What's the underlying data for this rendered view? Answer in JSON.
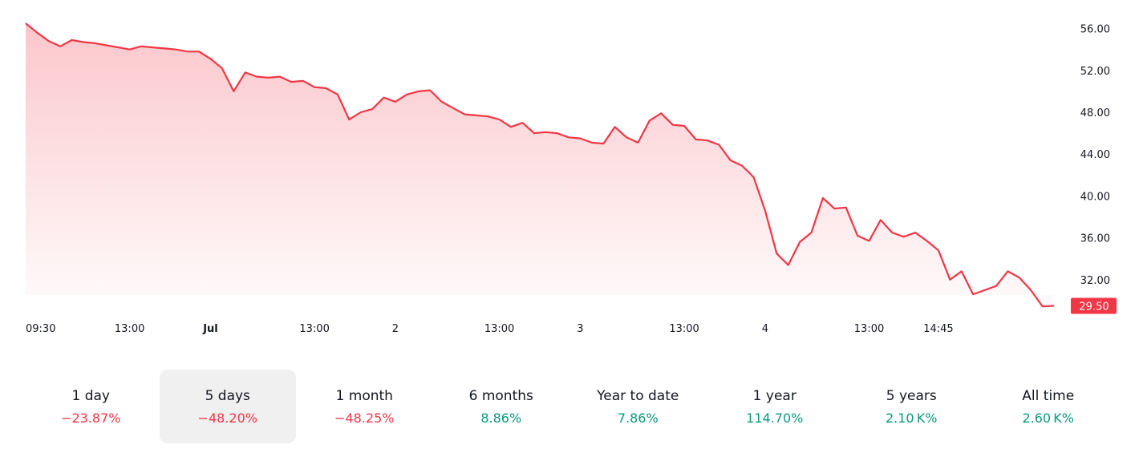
{
  "chart_data": {
    "type": "area",
    "y_ticks": [
      "56.00",
      "52.00",
      "48.00",
      "44.00",
      "40.00",
      "36.00",
      "32.00"
    ],
    "y_tick_values": [
      56,
      52,
      48,
      44,
      40,
      36,
      32
    ],
    "ylim": [
      29.0,
      57.5
    ],
    "x_ticks": [
      {
        "label": "09:30",
        "index": 0,
        "bold": false
      },
      {
        "label": "13:00",
        "index": 9,
        "bold": false
      },
      {
        "label": "Jul",
        "index": 16,
        "bold": true
      },
      {
        "label": "13:00",
        "index": 25,
        "bold": false
      },
      {
        "label": "2",
        "index": 32,
        "bold": false
      },
      {
        "label": "13:00",
        "index": 41,
        "bold": false
      },
      {
        "label": "3",
        "index": 48,
        "bold": false
      },
      {
        "label": "13:00",
        "index": 57,
        "bold": false
      },
      {
        "label": "4",
        "index": 64,
        "bold": false
      },
      {
        "label": "13:00",
        "index": 73,
        "bold": false
      },
      {
        "label": "14:45",
        "index": 79,
        "bold": false
      }
    ],
    "values": [
      56.5,
      55.6,
      54.8,
      54.3,
      54.9,
      54.7,
      54.6,
      54.4,
      54.2,
      54.0,
      54.3,
      54.2,
      54.1,
      54.0,
      53.8,
      53.8,
      53.1,
      52.2,
      50.0,
      51.8,
      51.4,
      51.3,
      51.4,
      50.9,
      51.0,
      50.4,
      50.3,
      49.7,
      47.3,
      48.0,
      48.3,
      49.4,
      49.0,
      49.7,
      50.0,
      50.1,
      49.0,
      48.4,
      47.8,
      47.7,
      47.6,
      47.3,
      46.6,
      47.0,
      46.0,
      46.1,
      46.0,
      45.6,
      45.5,
      45.1,
      45.0,
      46.6,
      45.6,
      45.1,
      47.2,
      47.9,
      46.8,
      46.7,
      45.4,
      45.3,
      44.9,
      43.4,
      42.9,
      41.8,
      38.6,
      34.5,
      33.4,
      35.6,
      36.5,
      39.8,
      38.8,
      38.9,
      36.2,
      35.7,
      37.7,
      36.5,
      36.1,
      36.5,
      35.7,
      34.8,
      32.0,
      32.8,
      30.6,
      31.0,
      31.4,
      32.8,
      32.2,
      31.0,
      29.45,
      29.5
    ],
    "last_price_label": "29.50",
    "line_color": "#f23645",
    "area_color": "#f23645"
  },
  "periods": [
    {
      "label": "1 day",
      "change": "−23.87%",
      "sign": "neg",
      "active": false
    },
    {
      "label": "5 days",
      "change": "−48.20%",
      "sign": "neg",
      "active": true
    },
    {
      "label": "1 month",
      "change": "−48.25%",
      "sign": "neg",
      "active": false
    },
    {
      "label": "6 months",
      "change": "8.86%",
      "sign": "pos",
      "active": false
    },
    {
      "label": "Year to date",
      "change": "7.86%",
      "sign": "pos",
      "active": false
    },
    {
      "label": "1 year",
      "change": "114.70%",
      "sign": "pos",
      "active": false
    },
    {
      "label": "5 years",
      "change": "2.10 K%",
      "sign": "pos",
      "active": false
    },
    {
      "label": "All time",
      "change": "2.60 K%",
      "sign": "pos",
      "active": false
    }
  ]
}
